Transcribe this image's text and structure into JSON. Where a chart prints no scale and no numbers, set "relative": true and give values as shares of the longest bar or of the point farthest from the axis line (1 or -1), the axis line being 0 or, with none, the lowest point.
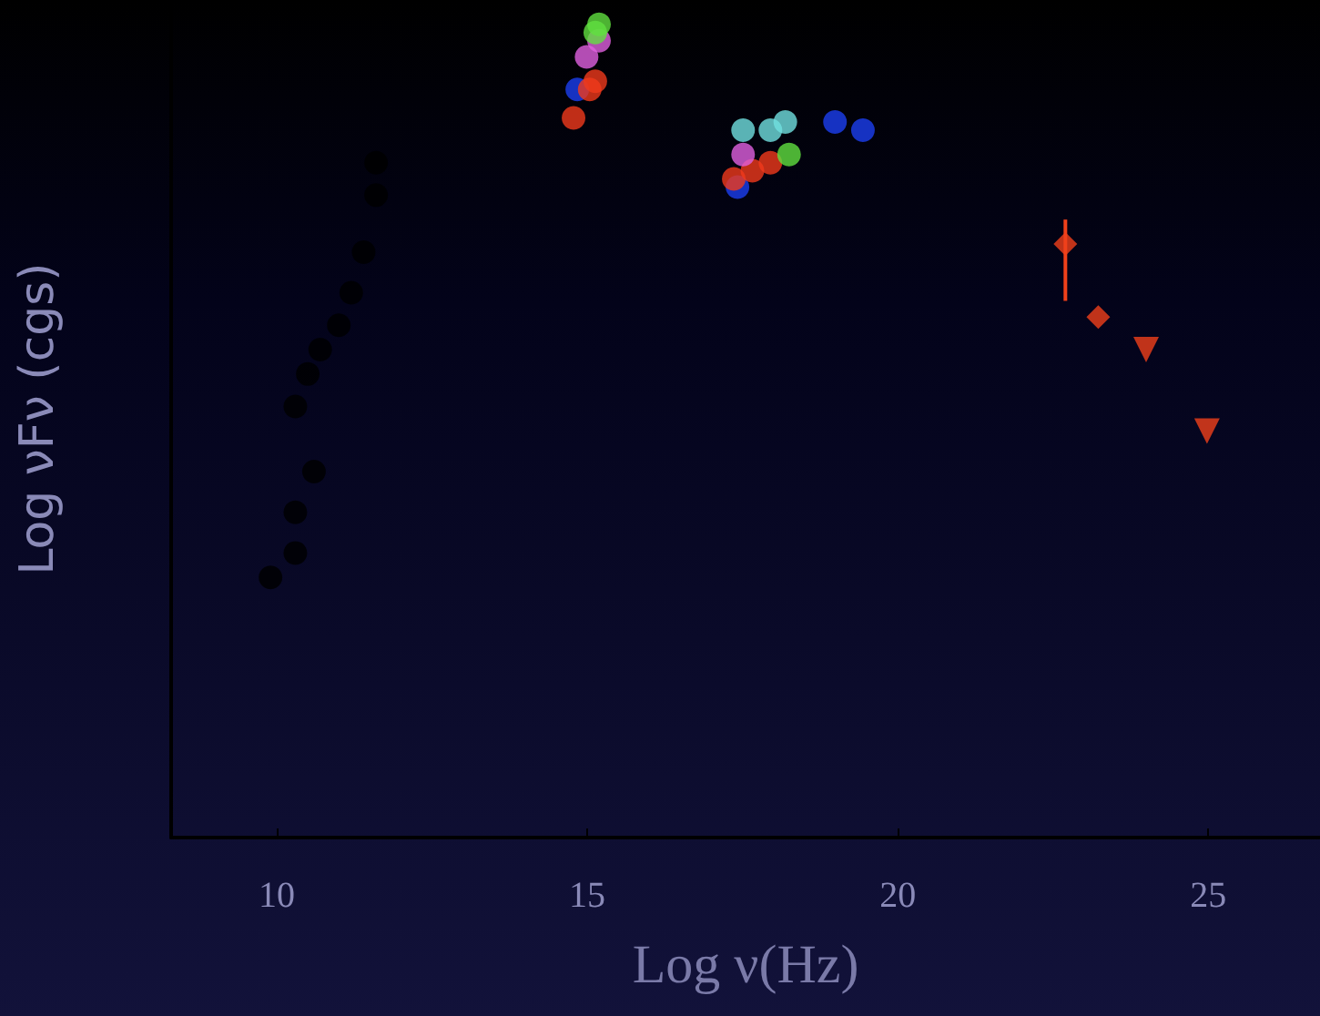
{
  "chart_data": {
    "type": "scatter",
    "xlabel": "Log ν(Hz)",
    "ylabel": "Log νFν (cgs)",
    "relative": true,
    "xlim": [
      8.3,
      26.8
    ],
    "xticks": [
      10,
      15,
      20,
      25
    ],
    "grid": false,
    "marker": "circle",
    "series": [
      {
        "color": "#000000",
        "x": [
          9.9,
          10.3,
          10.3,
          10.6,
          10.3,
          10.5,
          10.7,
          11.0,
          11.2,
          11.4,
          11.6,
          11.6
        ],
        "values": [
          0.32,
          0.35,
          0.4,
          0.45,
          0.53,
          0.57,
          0.6,
          0.63,
          0.67,
          0.72,
          0.79,
          0.83
        ]
      },
      {
        "color": "#1c3ff0",
        "x": [
          14.84,
          17.42,
          18.99,
          19.44
        ],
        "values": [
          0.92,
          0.8,
          0.88,
          0.87
        ]
      },
      {
        "color": "#f03a1c",
        "x": [
          14.78,
          15.04,
          15.13,
          17.36,
          17.66,
          17.95
        ],
        "values": [
          0.885,
          0.92,
          0.93,
          0.81,
          0.82,
          0.83
        ]
      },
      {
        "color": "#e060e0",
        "x": [
          14.99,
          15.19,
          17.51
        ],
        "values": [
          0.96,
          0.98,
          0.84
        ]
      },
      {
        "color": "#60e040",
        "x": [
          15.19,
          15.13,
          18.25
        ],
        "values": [
          1.0,
          0.99,
          0.84
        ]
      },
      {
        "color": "#70e0e0",
        "x": [
          17.51,
          17.95,
          18.19
        ],
        "values": [
          0.87,
          0.87,
          0.88
        ]
      },
      {
        "color": "#f0401a",
        "marker": "diamond",
        "x": [
          22.7,
          23.23
        ],
        "values": [
          0.73,
          0.64
        ]
      },
      {
        "type": "line",
        "color": "#f0401a",
        "marker": "none",
        "x": [
          22.7,
          22.7
        ],
        "values": [
          0.66,
          0.76
        ]
      },
      {
        "color": "#f0401a",
        "marker": "triangle",
        "x": [
          24.0,
          24.98
        ],
        "values": [
          0.6,
          0.5
        ]
      }
    ]
  }
}
